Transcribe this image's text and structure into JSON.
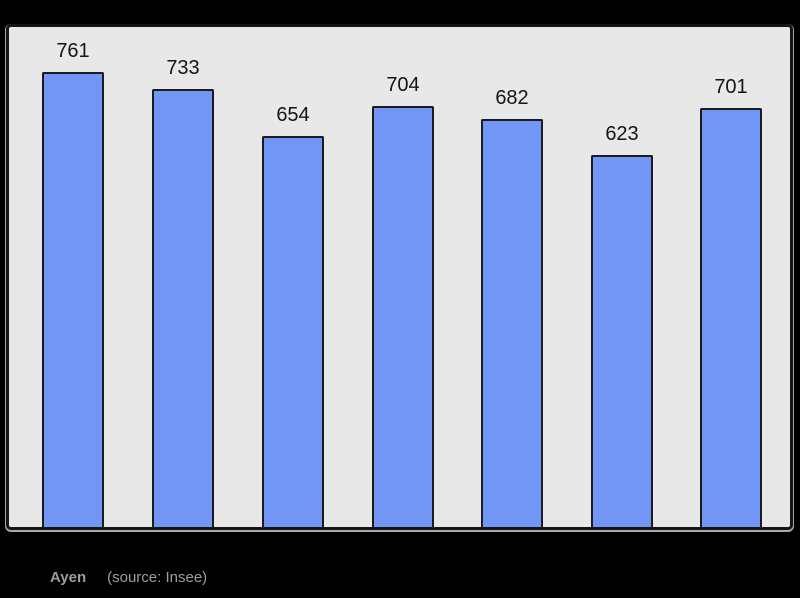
{
  "chart_data": {
    "type": "bar",
    "values": [
      761,
      733,
      654,
      704,
      682,
      623,
      701
    ],
    "categories": [
      "",
      "",
      "",
      "",
      "",
      "",
      ""
    ],
    "title": "",
    "xlabel": "",
    "ylabel": "",
    "ylim": [
      0,
      761
    ],
    "grid": false,
    "legend": null,
    "data_labels_shown": true,
    "bar_color": "#7296f6",
    "bar_border_color": "#1c1c1c",
    "plot_background": "#e8e8e8",
    "frame_border_color": "#161616",
    "page_background": "#000000",
    "value_label_color": "#141414"
  },
  "footer": {
    "place_label": "Ayen",
    "source_label": "(source: Insee)"
  }
}
